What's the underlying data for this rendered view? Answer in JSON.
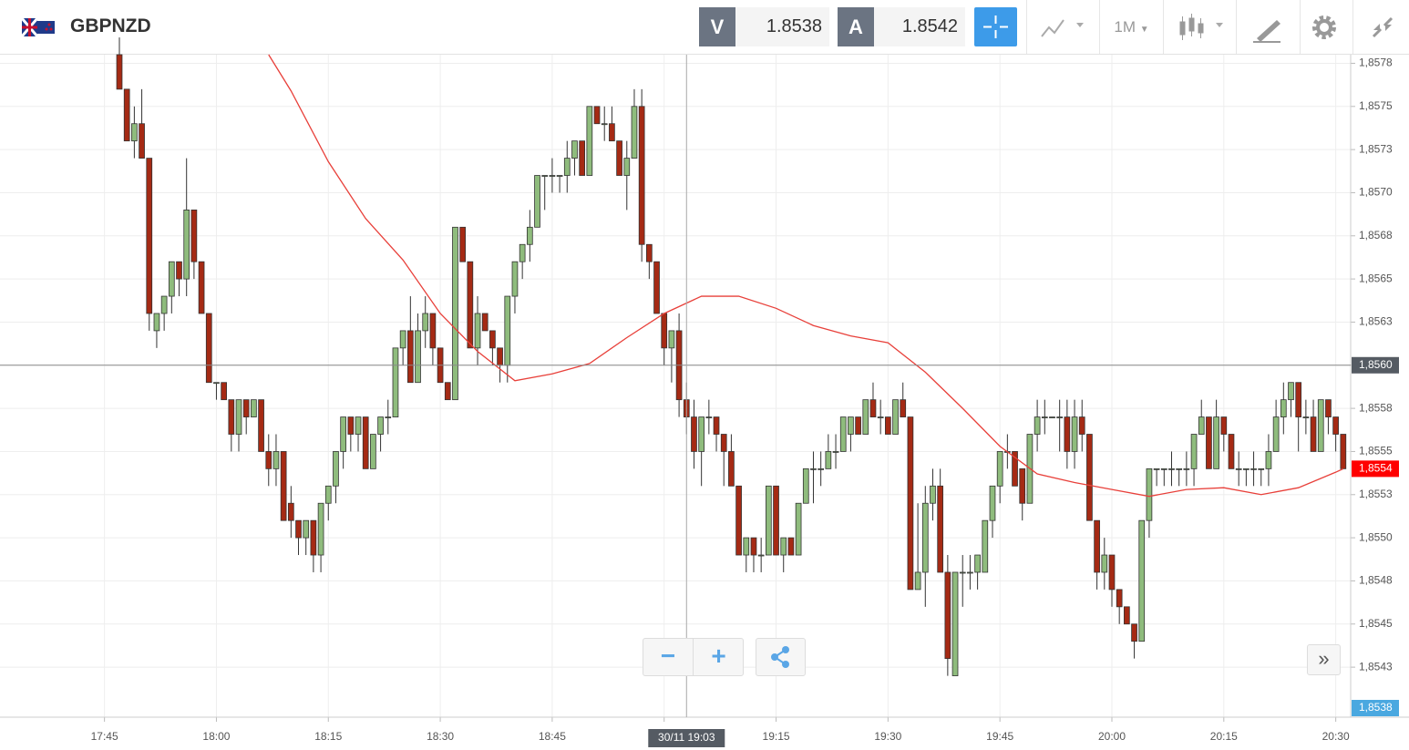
{
  "header": {
    "symbol": "GBPNZD",
    "sell_label": "V",
    "sell": 1.8538,
    "buy_label": "A",
    "buy": 1.8542,
    "timeframe": "1M"
  },
  "chart_data": {
    "type": "candlestick",
    "up_color": "#8fbc7d",
    "down_color": "#a52a14",
    "x": [
      "17:47",
      "17:48",
      "17:49",
      "17:50",
      "17:51",
      "17:52",
      "17:53",
      "17:54",
      "17:55",
      "17:56",
      "17:57",
      "17:58",
      "17:59",
      "18:00",
      "18:01",
      "18:02",
      "18:03",
      "18:04",
      "18:05",
      "18:06",
      "18:07",
      "18:08",
      "18:09",
      "18:10",
      "18:11",
      "18:12",
      "18:13",
      "18:14",
      "18:15",
      "18:16",
      "18:17",
      "18:18",
      "18:19",
      "18:20",
      "18:21",
      "18:22",
      "18:23",
      "18:24",
      "18:25",
      "18:26",
      "18:27",
      "18:28",
      "18:29",
      "18:30",
      "18:31",
      "18:32",
      "18:33",
      "18:34",
      "18:35",
      "18:36",
      "18:37",
      "18:38",
      "18:39",
      "18:40",
      "18:41",
      "18:42",
      "18:43",
      "18:44",
      "18:45",
      "18:46",
      "18:47",
      "18:48",
      "18:49",
      "18:50",
      "18:51",
      "18:52",
      "18:53",
      "18:54",
      "18:55",
      "18:56",
      "18:57",
      "18:58",
      "18:59",
      "19:00",
      "19:01",
      "19:02",
      "19:03",
      "19:04",
      "19:05",
      "19:06",
      "19:07",
      "19:08",
      "19:09",
      "19:10",
      "19:11",
      "19:12",
      "19:13",
      "19:14",
      "19:15",
      "19:16",
      "19:17",
      "19:18",
      "19:19",
      "19:20",
      "19:21",
      "19:22",
      "19:23",
      "19:24",
      "19:25",
      "19:26",
      "19:27",
      "19:28",
      "19:29",
      "19:30",
      "19:31",
      "19:32",
      "19:33",
      "19:34",
      "19:35",
      "19:36",
      "19:37",
      "19:38",
      "19:39",
      "19:40",
      "19:41",
      "19:42",
      "19:43",
      "19:44",
      "19:45",
      "19:46",
      "19:47",
      "19:48",
      "19:49",
      "19:50",
      "19:51",
      "19:52",
      "19:53",
      "19:54",
      "19:55",
      "19:56",
      "19:57",
      "19:58",
      "19:59",
      "20:00",
      "20:01",
      "20:02",
      "20:03",
      "20:04",
      "20:05",
      "20:06",
      "20:07",
      "20:08",
      "20:09",
      "20:10",
      "20:11",
      "20:12",
      "20:13",
      "20:14",
      "20:15",
      "20:16",
      "20:17",
      "20:18",
      "20:19",
      "20:20",
      "20:21",
      "20:22",
      "20:23",
      "20:24",
      "20:25",
      "20:26",
      "20:27",
      "20:28",
      "20:29",
      "20:30",
      "20:31"
    ],
    "open": [
      1.8578,
      1.8576,
      1.8573,
      1.8574,
      1.8572,
      1.8562,
      1.8563,
      1.8564,
      1.8566,
      1.8565,
      1.8569,
      1.8566,
      1.8563,
      1.8559,
      1.8559,
      1.8558,
      1.8556,
      1.8558,
      1.8557,
      1.8558,
      1.8555,
      1.8554,
      1.8555,
      1.8552,
      1.8551,
      1.855,
      1.8551,
      1.8549,
      1.8552,
      1.8553,
      1.8555,
      1.8557,
      1.8556,
      1.8557,
      1.8554,
      1.8556,
      1.8557,
      1.8557,
      1.8561,
      1.8562,
      1.8559,
      1.8562,
      1.8563,
      1.8561,
      1.8559,
      1.8558,
      1.8568,
      1.8566,
      1.8561,
      1.8563,
      1.8562,
      1.8561,
      1.856,
      1.8564,
      1.8566,
      1.8567,
      1.8568,
      1.8571,
      1.8571,
      1.8571,
      1.8571,
      1.8572,
      1.8573,
      1.8571,
      1.8575,
      1.8574,
      1.8574,
      1.8573,
      1.8571,
      1.8572,
      1.8575,
      1.8567,
      1.8566,
      1.8563,
      1.8561,
      1.8562,
      1.8558,
      1.8557,
      1.8555,
      1.8557,
      1.8557,
      1.8556,
      1.8555,
      1.8553,
      1.8549,
      1.855,
      1.8549,
      1.8549,
      1.8553,
      1.8549,
      1.855,
      1.8549,
      1.8552,
      1.8554,
      1.8554,
      1.8554,
      1.8555,
      1.8555,
      1.8556,
      1.8557,
      1.8556,
      1.8558,
      1.8557,
      1.8557,
      1.8556,
      1.8558,
      1.8557,
      1.8547,
      1.8548,
      1.8552,
      1.8553,
      1.8548,
      1.8542,
      1.8548,
      1.8548,
      1.8548,
      1.8548,
      1.8551,
      1.8553,
      1.8555,
      1.8555,
      1.8554,
      1.8552,
      1.8556,
      1.8557,
      1.8557,
      1.8557,
      1.8557,
      1.8555,
      1.8557,
      1.8556,
      1.8551,
      1.8548,
      1.8549,
      1.8547,
      1.8546,
      1.8545,
      1.8544,
      1.8551,
      1.8554,
      1.8554,
      1.8554,
      1.8554,
      1.8554,
      1.8554,
      1.8556,
      1.8557,
      1.8554,
      1.8557,
      1.8556,
      1.8554,
      1.8554,
      1.8554,
      1.8554,
      1.8554,
      1.8555,
      1.8557,
      1.8558,
      1.8559,
      1.8557,
      1.8557,
      1.8555,
      1.8558,
      1.8557,
      1.8556
    ],
    "high": [
      1.8579,
      1.8576,
      1.8575,
      1.8576,
      1.8572,
      1.8563,
      1.8564,
      1.8566,
      1.8566,
      1.8572,
      1.8569,
      1.8566,
      1.8563,
      1.8559,
      1.8559,
      1.8558,
      1.8558,
      1.8558,
      1.8558,
      1.8558,
      1.8556,
      1.8556,
      1.8555,
      1.8553,
      1.8551,
      1.8551,
      1.8551,
      1.8552,
      1.8553,
      1.8555,
      1.8557,
      1.8557,
      1.8557,
      1.8557,
      1.8556,
      1.8557,
      1.8558,
      1.8561,
      1.8562,
      1.8564,
      1.8563,
      1.8564,
      1.8563,
      1.8561,
      1.8559,
      1.8568,
      1.8568,
      1.8566,
      1.8564,
      1.8563,
      1.8562,
      1.8561,
      1.8564,
      1.8566,
      1.8567,
      1.8569,
      1.8571,
      1.8571,
      1.8572,
      1.8571,
      1.8573,
      1.8573,
      1.8573,
      1.8575,
      1.8575,
      1.8575,
      1.8575,
      1.8573,
      1.8573,
      1.8576,
      1.8576,
      1.8567,
      1.8566,
      1.8563,
      1.8562,
      1.8563,
      1.8559,
      1.8558,
      1.8557,
      1.8558,
      1.8557,
      1.8556,
      1.8556,
      1.8553,
      1.855,
      1.855,
      1.855,
      1.8553,
      1.8553,
      1.855,
      1.855,
      1.8552,
      1.8554,
      1.8555,
      1.8555,
      1.8556,
      1.8556,
      1.8557,
      1.8557,
      1.8557,
      1.8558,
      1.8559,
      1.8558,
      1.8557,
      1.8558,
      1.8559,
      1.8557,
      1.8552,
      1.8553,
      1.8554,
      1.8554,
      1.8549,
      1.8548,
      1.8549,
      1.8549,
      1.8549,
      1.8551,
      1.8553,
      1.8555,
      1.8556,
      1.8555,
      1.8554,
      1.8556,
      1.8558,
      1.8558,
      1.8557,
      1.8558,
      1.8558,
      1.8558,
      1.8558,
      1.8556,
      1.8551,
      1.855,
      1.8549,
      1.8547,
      1.8546,
      1.8545,
      1.8551,
      1.8554,
      1.8554,
      1.8554,
      1.8555,
      1.8554,
      1.8555,
      1.8556,
      1.8558,
      1.8557,
      1.8558,
      1.8557,
      1.8556,
      1.8555,
      1.8554,
      1.8555,
      1.8554,
      1.8556,
      1.8558,
      1.8559,
      1.8559,
      1.8559,
      1.8558,
      1.8558,
      1.8558,
      1.8558,
      1.8557,
      1.8556
    ],
    "low": [
      1.8576,
      1.8573,
      1.8572,
      1.8572,
      1.8562,
      1.8561,
      1.8562,
      1.8563,
      1.8564,
      1.8564,
      1.8565,
      1.8563,
      1.8559,
      1.8558,
      1.8558,
      1.8555,
      1.8555,
      1.8556,
      1.8557,
      1.8555,
      1.8553,
      1.8553,
      1.8551,
      1.855,
      1.8549,
      1.8549,
      1.8548,
      1.8548,
      1.8551,
      1.8552,
      1.8554,
      1.8555,
      1.8555,
      1.8554,
      1.8554,
      1.8555,
      1.8556,
      1.8557,
      1.856,
      1.8559,
      1.8559,
      1.8561,
      1.856,
      1.8559,
      1.8558,
      1.8558,
      1.8566,
      1.8561,
      1.856,
      1.8562,
      1.856,
      1.8559,
      1.8559,
      1.8563,
      1.8565,
      1.8566,
      1.8568,
      1.8569,
      1.857,
      1.857,
      1.857,
      1.8571,
      1.8571,
      1.8571,
      1.8574,
      1.8573,
      1.8573,
      1.8571,
      1.8569,
      1.8572,
      1.8566,
      1.8565,
      1.8563,
      1.856,
      1.8559,
      1.8557,
      1.8556,
      1.8554,
      1.8553,
      1.8556,
      1.8555,
      1.8553,
      1.8553,
      1.8549,
      1.8548,
      1.8548,
      1.8548,
      1.8549,
      1.8549,
      1.8548,
      1.8549,
      1.8549,
      1.8552,
      1.8552,
      1.8553,
      1.8554,
      1.8554,
      1.8555,
      1.8555,
      1.8556,
      1.8556,
      1.8557,
      1.8556,
      1.8556,
      1.8556,
      1.8557,
      1.8547,
      1.8547,
      1.8546,
      1.8551,
      1.8548,
      1.8542,
      1.8542,
      1.8546,
      1.8547,
      1.8547,
      1.8548,
      1.855,
      1.8552,
      1.8554,
      1.8553,
      1.8551,
      1.8552,
      1.8555,
      1.8556,
      1.8557,
      1.8555,
      1.8554,
      1.8554,
      1.8555,
      1.8551,
      1.8547,
      1.8547,
      1.8546,
      1.8545,
      1.8545,
      1.8543,
      1.8544,
      1.855,
      1.8553,
      1.8553,
      1.8553,
      1.8553,
      1.8553,
      1.8553,
      1.8556,
      1.8554,
      1.8554,
      1.8555,
      1.8554,
      1.8553,
      1.8553,
      1.8553,
      1.8553,
      1.8553,
      1.8555,
      1.8556,
      1.8557,
      1.8555,
      1.8556,
      1.8555,
      1.8555,
      1.8556,
      1.8555,
      1.8554
    ],
    "close": [
      1.8576,
      1.8573,
      1.8574,
      1.8572,
      1.8563,
      1.8563,
      1.8564,
      1.8566,
      1.8565,
      1.8569,
      1.8566,
      1.8563,
      1.8559,
      1.8559,
      1.8558,
      1.8556,
      1.8558,
      1.8557,
      1.8558,
      1.8555,
      1.8554,
      1.8555,
      1.8551,
      1.8551,
      1.855,
      1.8551,
      1.8549,
      1.8552,
      1.8553,
      1.8555,
      1.8557,
      1.8556,
      1.8557,
      1.8554,
      1.8556,
      1.8557,
      1.8557,
      1.8561,
      1.8562,
      1.8559,
      1.8562,
      1.8563,
      1.8561,
      1.8559,
      1.8558,
      1.8568,
      1.8566,
      1.8561,
      1.8563,
      1.8562,
      1.8561,
      1.856,
      1.8564,
      1.8566,
      1.8567,
      1.8568,
      1.8571,
      1.8571,
      1.8571,
      1.8571,
      1.8572,
      1.8573,
      1.8571,
      1.8575,
      1.8574,
      1.8574,
      1.8573,
      1.8571,
      1.8572,
      1.8575,
      1.8567,
      1.8566,
      1.8563,
      1.8561,
      1.8562,
      1.8558,
      1.8557,
      1.8555,
      1.8557,
      1.8557,
      1.8556,
      1.8555,
      1.8553,
      1.8549,
      1.855,
      1.8549,
      1.8549,
      1.8553,
      1.8549,
      1.855,
      1.8549,
      1.8552,
      1.8554,
      1.8554,
      1.8554,
      1.8555,
      1.8555,
      1.8557,
      1.8557,
      1.8556,
      1.8558,
      1.8557,
      1.8557,
      1.8556,
      1.8558,
      1.8557,
      1.8547,
      1.8548,
      1.8552,
      1.8553,
      1.8548,
      1.8543,
      1.8548,
      1.8548,
      1.8548,
      1.8549,
      1.8551,
      1.8553,
      1.8555,
      1.8555,
      1.8553,
      1.8552,
      1.8556,
      1.8557,
      1.8557,
      1.8557,
      1.8557,
      1.8555,
      1.8557,
      1.8556,
      1.8551,
      1.8548,
      1.8549,
      1.8547,
      1.8546,
      1.8545,
      1.8544,
      1.8551,
      1.8554,
      1.8554,
      1.8554,
      1.8554,
      1.8554,
      1.8554,
      1.8556,
      1.8557,
      1.8554,
      1.8557,
      1.8556,
      1.8554,
      1.8554,
      1.8554,
      1.8554,
      1.8554,
      1.8555,
      1.8557,
      1.8558,
      1.8559,
      1.8557,
      1.8557,
      1.8555,
      1.8558,
      1.8557,
      1.8556,
      1.8554
    ],
    "ma": {
      "color": "#e8403a",
      "x": [
        "18:07",
        "18:10",
        "18:15",
        "18:20",
        "18:25",
        "18:30",
        "18:35",
        "18:40",
        "18:45",
        "18:50",
        "18:55",
        "19:00",
        "19:05",
        "19:10",
        "19:15",
        "19:20",
        "19:25",
        "19:30",
        "19:35",
        "19:40",
        "19:45",
        "19:50",
        "19:55",
        "20:00",
        "20:05",
        "20:10",
        "20:15",
        "20:20",
        "20:25",
        "20:30",
        "20:31"
      ],
      "values": [
        1.8578,
        1.85759,
        1.85718,
        1.85685,
        1.85661,
        1.8563,
        1.85608,
        1.85591,
        1.85595,
        1.85601,
        1.85616,
        1.8563,
        1.8564,
        1.8564,
        1.85633,
        1.85623,
        1.85617,
        1.85613,
        1.85596,
        1.85575,
        1.85553,
        1.85537,
        1.85532,
        1.85528,
        1.85524,
        1.85528,
        1.85529,
        1.85525,
        1.85529,
        1.85538,
        1.8554
      ]
    },
    "xlim": [
      "17:31",
      "20:32"
    ],
    "xticks": [
      "17:45",
      "18:00",
      "18:15",
      "18:30",
      "18:45",
      "19:00",
      "19:15",
      "19:30",
      "19:45",
      "20:00",
      "20:15",
      "20:30"
    ],
    "ylim": [
      1.85396,
      1.8578
    ],
    "yticks": [
      {
        "value": 1.85425,
        "label": "1,8543"
      },
      {
        "value": 1.8545,
        "label": "1,8545"
      },
      {
        "value": 1.85475,
        "label": "1,8548"
      },
      {
        "value": 1.855,
        "label": "1,8550"
      },
      {
        "value": 1.85525,
        "label": "1,8553"
      },
      {
        "value": 1.8555,
        "label": "1,8555"
      },
      {
        "value": 1.85575,
        "label": "1,8558"
      },
      {
        "value": 1.856,
        "label": "1,8560"
      },
      {
        "value": 1.85625,
        "label": "1,8563"
      },
      {
        "value": 1.8565,
        "label": "1,8565"
      },
      {
        "value": 1.85675,
        "label": "1,8568"
      },
      {
        "value": 1.857,
        "label": "1,8570"
      },
      {
        "value": 1.85725,
        "label": "1,8573"
      },
      {
        "value": 1.8575,
        "label": "1,8575"
      },
      {
        "value": 1.85775,
        "label": "1,8578"
      }
    ],
    "grid": true,
    "crosshair": {
      "time": "19:03",
      "time_label": "30/11 19:03",
      "price": {
        "value": 1.856,
        "label": "1,8560"
      }
    },
    "last_price": {
      "value": 1.8554,
      "label": "1,8554"
    },
    "bid_marker": {
      "value": 1.8538,
      "label": "1,8538"
    }
  }
}
